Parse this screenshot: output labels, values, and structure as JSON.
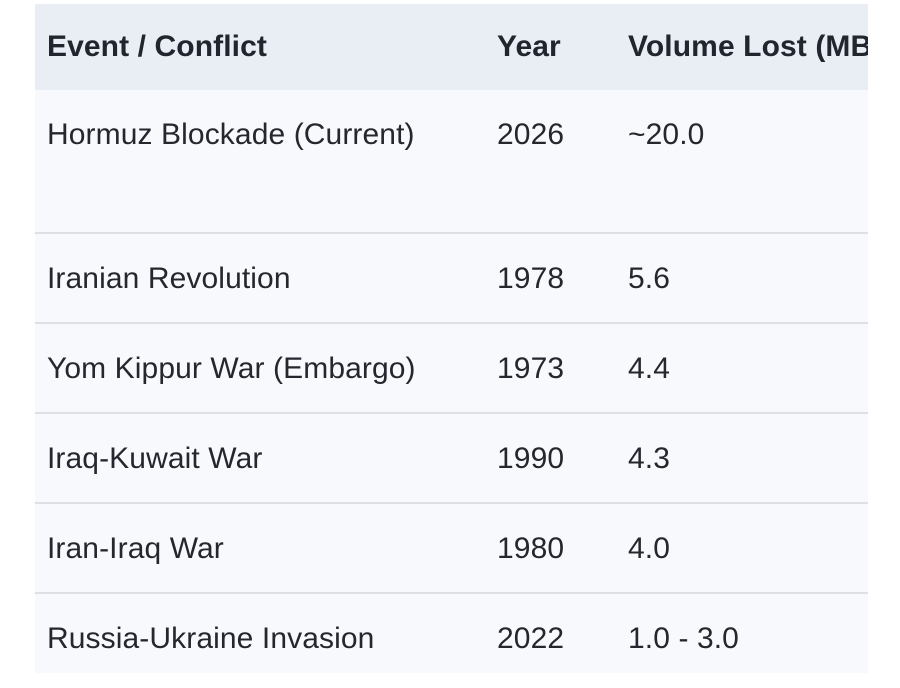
{
  "table": {
    "columns": [
      {
        "id": "event",
        "label": "Event / Conflict"
      },
      {
        "id": "year",
        "label": "Year"
      },
      {
        "id": "volume",
        "label": "Volume Lost (MBP"
      }
    ],
    "rows": [
      {
        "event": "Hormuz Blockade (Current)",
        "year": "2026",
        "volume": "~20.0"
      },
      {
        "event": "Iranian Revolution",
        "year": "1978",
        "volume": "5.6"
      },
      {
        "event": "Yom Kippur War (Embargo)",
        "year": "1973",
        "volume": "4.4"
      },
      {
        "event": "Iraq-Kuwait War",
        "year": "1990",
        "volume": "4.3"
      },
      {
        "event": "Iran-Iraq War",
        "year": "1980",
        "volume": "4.0"
      },
      {
        "event": "Russia-Ukraine Invasion",
        "year": "2022",
        "volume": "1.0 - 3.0"
      }
    ],
    "colors": {
      "header_bg": "#e9edf4",
      "row_bg": "#f8f9fd",
      "divider": "#dee0e5",
      "header_text": "#21252e",
      "body_text": "#24272e",
      "page_bg": "#ffffff"
    }
  },
  "chart_data": {
    "type": "table",
    "title": "",
    "columns": [
      "Event / Conflict",
      "Year",
      "Volume Lost (MBP"
    ],
    "rows": [
      [
        "Hormuz Blockade (Current)",
        "2026",
        "~20.0"
      ],
      [
        "Iranian Revolution",
        "1978",
        "5.6"
      ],
      [
        "Yom Kippur War (Embargo)",
        "1973",
        "4.4"
      ],
      [
        "Iraq-Kuwait War",
        "1990",
        "4.3"
      ],
      [
        "Iran-Iraq War",
        "1980",
        "4.0"
      ],
      [
        "Russia-Ukraine Invasion",
        "2022",
        "1.0 - 3.0"
      ]
    ],
    "notes": "Third column header text is clipped at the right edge of the viewport"
  }
}
